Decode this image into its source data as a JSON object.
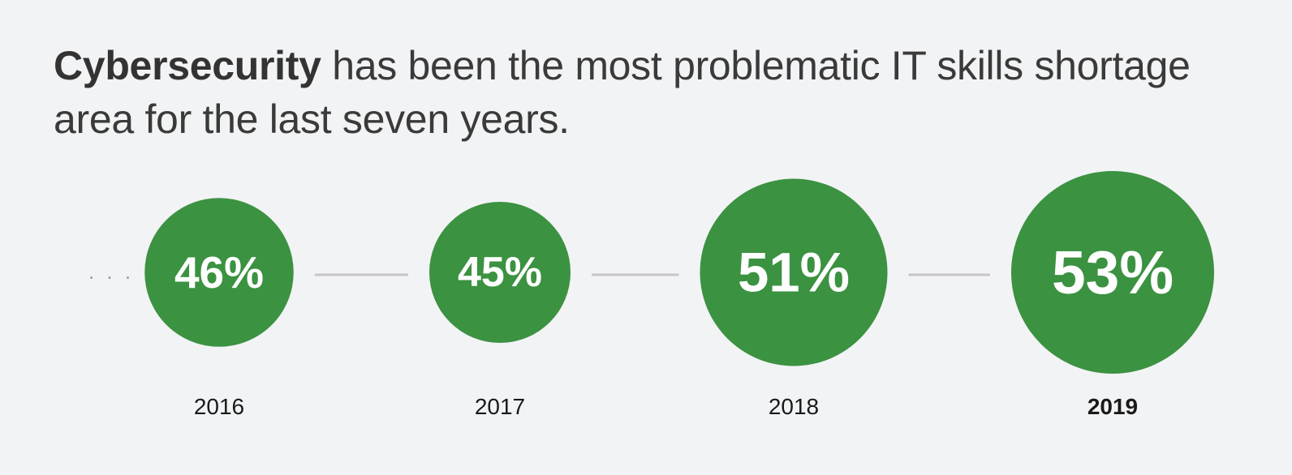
{
  "headline": {
    "bold": "Cybersecurity",
    "rest": " has been the most problematic IT skills shortage area for the last seven years."
  },
  "leading_ellipsis": ". . .",
  "colors": {
    "circle": "#3b9241",
    "connector": "#c6c6c6",
    "ellipsis": "#9a9a9a",
    "background": "#f2f3f5"
  },
  "chart_data": {
    "type": "bubble-timeline",
    "unit": "%",
    "categories": [
      "2016",
      "2017",
      "2018",
      "2019"
    ],
    "values": [
      46,
      45,
      51,
      53
    ],
    "labels": [
      "46%",
      "45%",
      "51%",
      "53%"
    ],
    "highlight": "2019"
  }
}
